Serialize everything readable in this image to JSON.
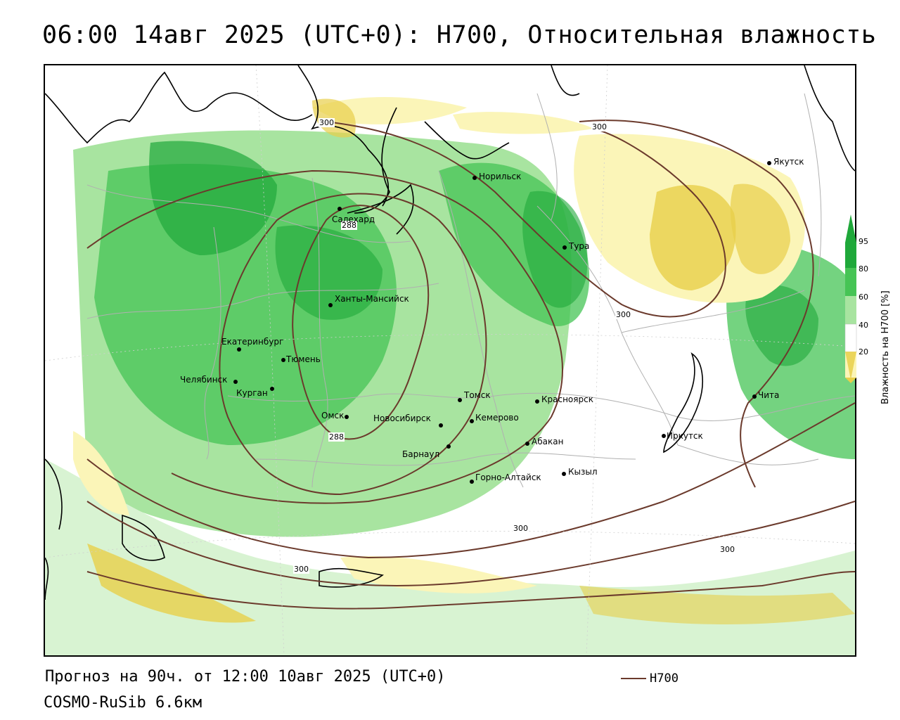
{
  "title": "06:00 14авг 2025 (UTC+0): H700, Относительная влажность",
  "footer": {
    "forecast": "Прогноз на 90ч. от 12:00 10авг 2025 (UTC+0)",
    "model": "COSMO-RuSib 6.6км",
    "line_legend": "H700"
  },
  "legend": {
    "title": "Влажность на H700 [%]",
    "ticks": [
      "95",
      "80",
      "60",
      "40",
      "20"
    ],
    "colors": {
      "very_wet": "#1fa83a",
      "wet": "#46c455",
      "moist": "#a8e4a0",
      "light": "#d8f3d2",
      "dry": "#fbf5b8",
      "very_dry": "#e8cf4a"
    }
  },
  "contour_labels": [
    "300",
    "288",
    "288",
    "300",
    "300",
    "300",
    "300",
    "300"
  ],
  "cities": [
    "Норильск",
    "Якутск",
    "Салехард",
    "Тура",
    "Ханты-Мансийск",
    "Екатеринбург",
    "Тюмень",
    "Челябинск",
    "Курган",
    "Омск",
    "Томск",
    "Красноярск",
    "Новосибирск",
    "Кемерово",
    "Абакан",
    "Барнаул",
    "Горно-Алтайск",
    "Кызыл",
    "Иркутск",
    "Чита"
  ],
  "colors": {
    "contour": "#6b3a2c",
    "coast": "#000000",
    "border": "#b0b0b0"
  }
}
